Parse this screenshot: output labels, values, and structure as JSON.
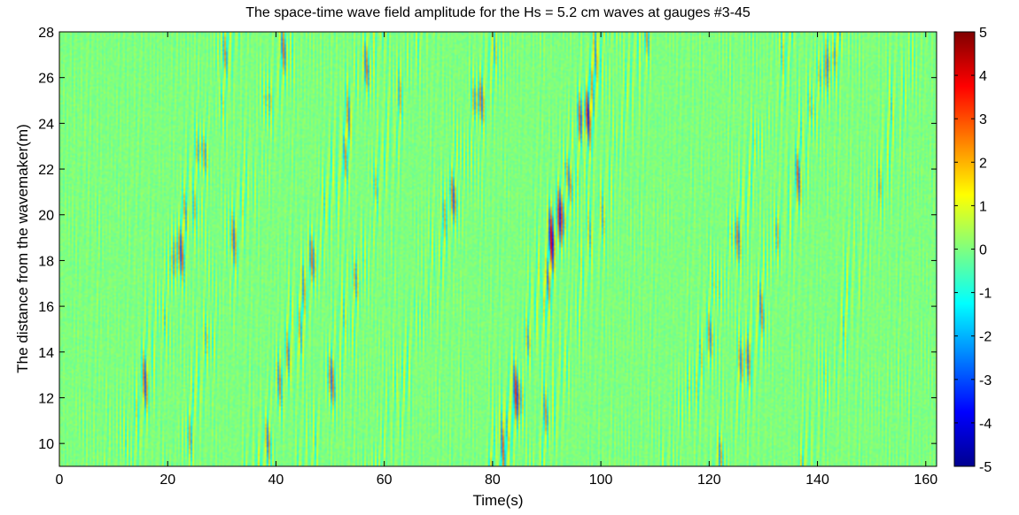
{
  "chart_data": {
    "type": "heatmap",
    "title": "The space-time wave field amplitude for the Hs = 5.2 cm waves at gauges #3-45",
    "xlabel": "Time(s)",
    "ylabel": "The distance from the wavemaker(m)",
    "xlim": [
      0,
      162
    ],
    "ylim": [
      9,
      28
    ],
    "x_ticks": [
      "0",
      "20",
      "40",
      "60",
      "80",
      "100",
      "120",
      "140",
      "160"
    ],
    "y_ticks": [
      "10",
      "12",
      "14",
      "16",
      "18",
      "20",
      "22",
      "24",
      "26",
      "28"
    ],
    "colorbar": {
      "colormap": "jet",
      "clim": [
        -5,
        5
      ],
      "ticks": [
        "5",
        "4",
        "3",
        "2",
        "1",
        "0",
        "-1",
        "-2",
        "-3",
        "-4",
        "-5"
      ],
      "levels": 64
    },
    "wave_groups": [
      {
        "t_at_9m": 12,
        "t_at_28m": 32,
        "strength": 0.55
      },
      {
        "t_at_9m": 22,
        "t_at_28m": 42,
        "strength": 0.45
      },
      {
        "t_at_9m": 37,
        "t_at_28m": 58,
        "strength": 0.8
      },
      {
        "t_at_9m": 46,
        "t_at_28m": 66,
        "strength": 0.5
      },
      {
        "t_at_9m": 59,
        "t_at_28m": 81,
        "strength": 0.45
      },
      {
        "t_at_9m": 81,
        "t_at_28m": 101,
        "strength": 1.0
      },
      {
        "t_at_9m": 88,
        "t_at_28m": 108,
        "strength": 0.5
      },
      {
        "t_at_9m": 113,
        "t_at_28m": 135,
        "strength": 0.45
      },
      {
        "t_at_9m": 122,
        "t_at_28m": 143,
        "strength": 0.6
      },
      {
        "t_at_9m": 138,
        "t_at_28m": 158,
        "strength": 0.45
      }
    ]
  }
}
